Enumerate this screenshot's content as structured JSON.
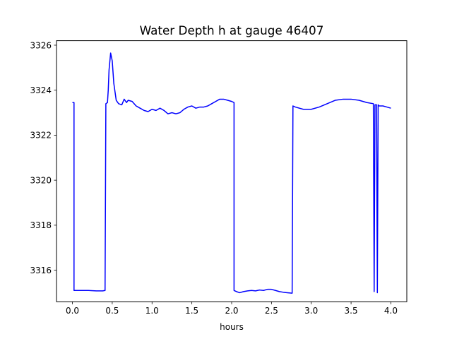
{
  "chart_data": {
    "type": "line",
    "title": "Water Depth h at gauge 46407",
    "xlabel": "hours",
    "ylabel": "",
    "xlim": [
      -0.2,
      4.2
    ],
    "ylim": [
      3314.6,
      3326.2
    ],
    "xticks": [
      0.0,
      0.5,
      1.0,
      1.5,
      2.0,
      2.5,
      3.0,
      3.5,
      4.0
    ],
    "xtick_labels": [
      "0.0",
      "0.5",
      "1.0",
      "1.5",
      "2.0",
      "2.5",
      "3.0",
      "3.5",
      "4.0"
    ],
    "yticks": [
      3316,
      3318,
      3320,
      3322,
      3324,
      3326
    ],
    "ytick_labels": [
      "3316",
      "3318",
      "3320",
      "3322",
      "3324",
      "3326"
    ],
    "grid": false,
    "legend": "none",
    "series": [
      {
        "color": "#0000ff",
        "x": [
          0.0,
          0.02,
          0.02,
          0.1,
          0.2,
          0.3,
          0.38,
          0.41,
          0.42,
          0.44,
          0.45,
          0.46,
          0.48,
          0.5,
          0.52,
          0.55,
          0.58,
          0.62,
          0.65,
          0.68,
          0.7,
          0.75,
          0.8,
          0.85,
          0.9,
          0.95,
          1.0,
          1.05,
          1.1,
          1.15,
          1.2,
          1.25,
          1.3,
          1.35,
          1.4,
          1.45,
          1.5,
          1.55,
          1.6,
          1.65,
          1.7,
          1.75,
          1.8,
          1.85,
          1.9,
          1.95,
          2.0,
          2.03,
          2.03,
          2.06,
          2.1,
          2.15,
          2.2,
          2.25,
          2.3,
          2.35,
          2.4,
          2.45,
          2.5,
          2.55,
          2.6,
          2.65,
          2.7,
          2.76,
          2.77,
          2.8,
          2.9,
          3.0,
          3.1,
          3.2,
          3.3,
          3.4,
          3.5,
          3.6,
          3.7,
          3.78,
          3.79,
          3.8,
          3.81,
          3.82,
          3.83,
          3.84,
          3.85,
          3.9,
          3.95,
          4.0
        ],
        "y": [
          3323.45,
          3323.45,
          3315.1,
          3315.1,
          3315.1,
          3315.08,
          3315.08,
          3315.1,
          3323.4,
          3323.45,
          3324.0,
          3324.9,
          3325.65,
          3325.3,
          3324.3,
          3323.55,
          3323.4,
          3323.35,
          3323.6,
          3323.45,
          3323.55,
          3323.5,
          3323.3,
          3323.2,
          3323.1,
          3323.05,
          3323.15,
          3323.1,
          3323.2,
          3323.1,
          3322.95,
          3323.0,
          3322.95,
          3323.0,
          3323.15,
          3323.25,
          3323.3,
          3323.2,
          3323.25,
          3323.25,
          3323.3,
          3323.4,
          3323.5,
          3323.6,
          3323.6,
          3323.55,
          3323.5,
          3323.45,
          3315.1,
          3315.05,
          3315.0,
          3315.05,
          3315.08,
          3315.1,
          3315.08,
          3315.12,
          3315.1,
          3315.15,
          3315.15,
          3315.1,
          3315.05,
          3315.02,
          3315.0,
          3314.98,
          3323.3,
          3323.25,
          3323.15,
          3323.15,
          3323.25,
          3323.4,
          3323.55,
          3323.6,
          3323.6,
          3323.55,
          3323.45,
          3323.4,
          3315.05,
          3323.35,
          3323.35,
          3323.35,
          3315.0,
          3323.35,
          3323.3,
          3323.3,
          3323.25,
          3323.2
        ]
      }
    ]
  }
}
